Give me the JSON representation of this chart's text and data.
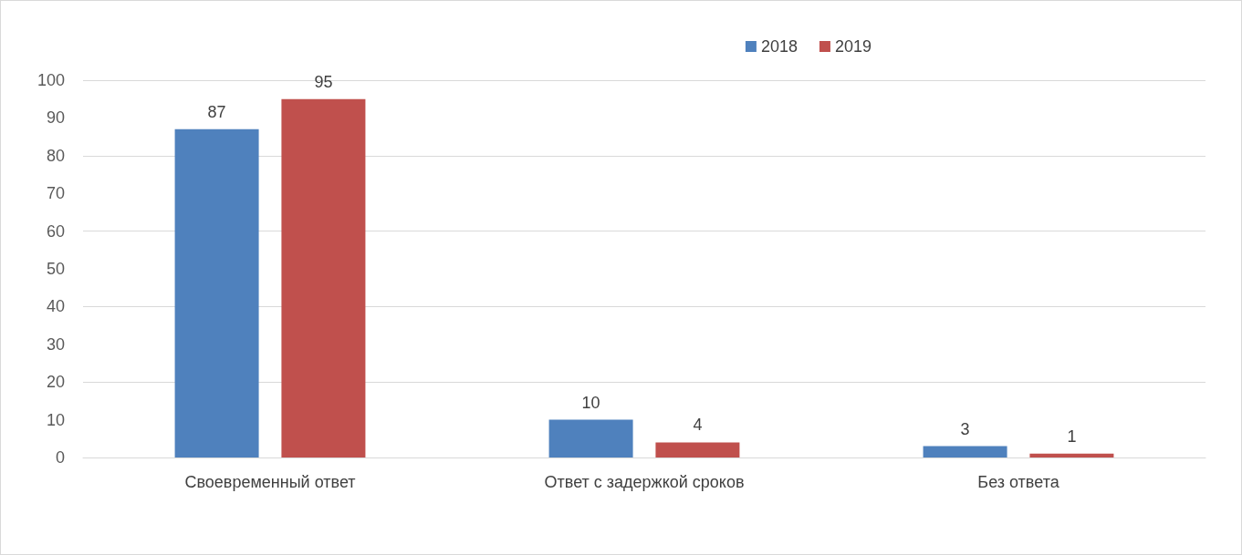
{
  "chart_data": {
    "type": "bar",
    "categories": [
      "Своевременный ответ",
      "Ответ с задержкой сроков",
      "Без ответа"
    ],
    "series": [
      {
        "name": "2018",
        "color": "#4f81bd",
        "values": [
          87,
          10,
          3
        ]
      },
      {
        "name": "2019",
        "color": "#c0504d",
        "values": [
          95,
          4,
          1
        ]
      }
    ],
    "ylim": [
      0,
      100
    ],
    "yticks": [
      0,
      10,
      20,
      30,
      40,
      50,
      60,
      70,
      80,
      90,
      100
    ],
    "grid": "y",
    "legend": "top right",
    "data_labels": true
  }
}
